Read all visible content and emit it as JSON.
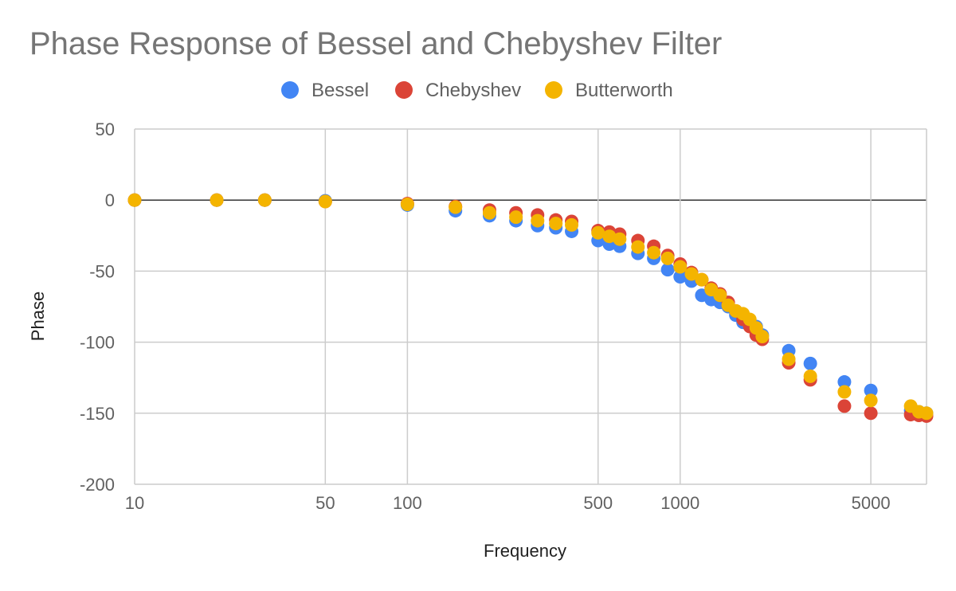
{
  "chart_data": {
    "type": "scatter",
    "title": "Phase Response of Bessel and Chebyshev Filter",
    "xlabel": "Frequency",
    "ylabel": "Phase",
    "x_scale": "log",
    "xlim": [
      10,
      8000
    ],
    "ylim": [
      -200,
      50
    ],
    "x_ticks": [
      10,
      50,
      100,
      500,
      1000,
      5000
    ],
    "x_tick_labels": [
      "10",
      "50",
      "100",
      "500",
      "1000",
      "5000"
    ],
    "y_ticks": [
      50,
      0,
      -50,
      -100,
      -150,
      -200
    ],
    "y_tick_labels": [
      "50",
      "0",
      "-50",
      "-100",
      "-150",
      "-200"
    ],
    "grid": true,
    "legend_position": "top",
    "series": [
      {
        "name": "Bessel",
        "color": "#4285F4",
        "points": [
          [
            10,
            0
          ],
          [
            20,
            0
          ],
          [
            30,
            0
          ],
          [
            50,
            -0.5
          ],
          [
            100,
            -3.5
          ],
          [
            150,
            -7.5
          ],
          [
            200,
            -11
          ],
          [
            250,
            -14.5
          ],
          [
            300,
            -18
          ],
          [
            350,
            -19.5
          ],
          [
            400,
            -22
          ],
          [
            500,
            -28.5
          ],
          [
            550,
            -31
          ],
          [
            600,
            -32.5
          ],
          [
            700,
            -37.5
          ],
          [
            800,
            -41
          ],
          [
            900,
            -49
          ],
          [
            1000,
            -54
          ],
          [
            1100,
            -57
          ],
          [
            1200,
            -67
          ],
          [
            1300,
            -70
          ],
          [
            1400,
            -72
          ],
          [
            1500,
            -75
          ],
          [
            1600,
            -81
          ],
          [
            1700,
            -86
          ],
          [
            1800,
            -87
          ],
          [
            1900,
            -89
          ],
          [
            2000,
            -95
          ],
          [
            2500,
            -106
          ],
          [
            3000,
            -115
          ],
          [
            4000,
            -128
          ],
          [
            5000,
            -134
          ],
          [
            7000,
            -148
          ],
          [
            7500,
            -149
          ],
          [
            8000,
            -150
          ]
        ]
      },
      {
        "name": "Chebyshev",
        "color": "#DB4437",
        "points": [
          [
            10,
            0
          ],
          [
            20,
            0
          ],
          [
            30,
            0
          ],
          [
            50,
            -1
          ],
          [
            100,
            -2.5
          ],
          [
            150,
            -4.5
          ],
          [
            200,
            -7
          ],
          [
            250,
            -9
          ],
          [
            300,
            -10.5
          ],
          [
            350,
            -14
          ],
          [
            400,
            -15
          ],
          [
            500,
            -21.5
          ],
          [
            550,
            -22.5
          ],
          [
            600,
            -24
          ],
          [
            700,
            -28.5
          ],
          [
            800,
            -32.5
          ],
          [
            900,
            -39
          ],
          [
            1000,
            -45
          ],
          [
            1100,
            -51
          ],
          [
            1200,
            -56
          ],
          [
            1300,
            -62
          ],
          [
            1400,
            -66
          ],
          [
            1500,
            -72
          ],
          [
            1600,
            -78
          ],
          [
            1700,
            -84
          ],
          [
            1800,
            -89
          ],
          [
            1900,
            -95
          ],
          [
            2000,
            -98
          ],
          [
            2500,
            -114.5
          ],
          [
            3000,
            -126.5
          ],
          [
            4000,
            -145
          ],
          [
            5000,
            -150
          ],
          [
            7000,
            -151
          ],
          [
            7500,
            -151.5
          ],
          [
            8000,
            -152
          ]
        ]
      },
      {
        "name": "Butterworth",
        "color": "#F4B400",
        "points": [
          [
            10,
            0
          ],
          [
            20,
            0
          ],
          [
            30,
            0
          ],
          [
            50,
            -1
          ],
          [
            100,
            -3
          ],
          [
            150,
            -5
          ],
          [
            200,
            -9
          ],
          [
            250,
            -12
          ],
          [
            300,
            -14.5
          ],
          [
            350,
            -16.5
          ],
          [
            400,
            -17.5
          ],
          [
            500,
            -23
          ],
          [
            550,
            -25.5
          ],
          [
            600,
            -27.5
          ],
          [
            700,
            -33
          ],
          [
            800,
            -37
          ],
          [
            900,
            -41
          ],
          [
            1000,
            -47
          ],
          [
            1100,
            -52
          ],
          [
            1200,
            -56
          ],
          [
            1300,
            -63
          ],
          [
            1400,
            -67
          ],
          [
            1500,
            -74
          ],
          [
            1600,
            -78
          ],
          [
            1700,
            -80
          ],
          [
            1800,
            -84
          ],
          [
            1900,
            -90
          ],
          [
            2000,
            -96
          ],
          [
            2500,
            -112
          ],
          [
            3000,
            -124
          ],
          [
            4000,
            -135
          ],
          [
            5000,
            -141
          ],
          [
            7000,
            -145
          ],
          [
            7500,
            -149
          ],
          [
            8000,
            -150
          ]
        ]
      }
    ]
  }
}
